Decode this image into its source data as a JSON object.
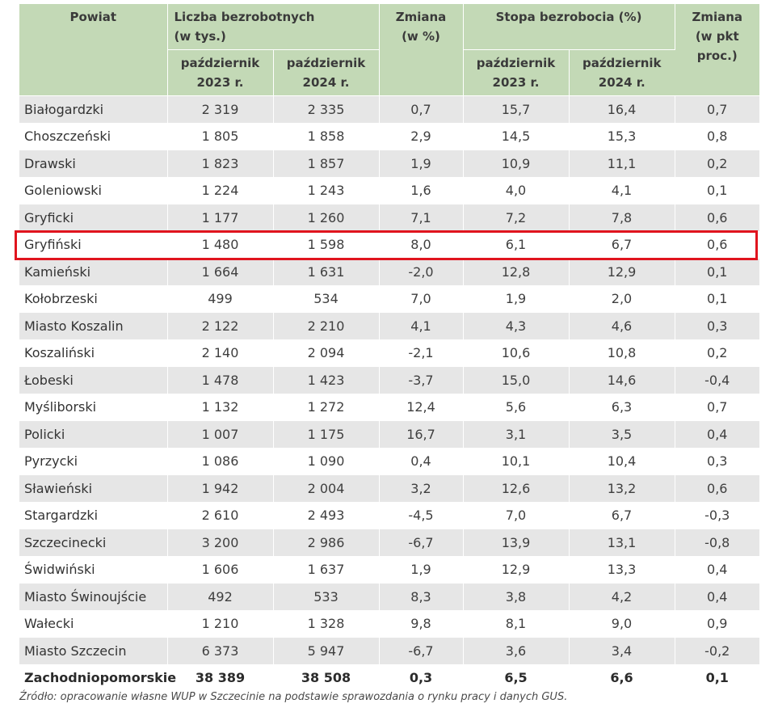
{
  "header": {
    "powiat": "Powiat",
    "liczba_line1": "Liczba bezrobotnych",
    "liczba_line2": "(w tys.)",
    "zmiana1_line1": "Zmiana",
    "zmiana1_line2": "(w %)",
    "stopa": "Stopa bezrobocia (%)",
    "zmiana2_line1": "Zmiana",
    "zmiana2_line2": "(w pkt",
    "zmiana2_line3": "proc.)",
    "sub_a_line1": "październik",
    "sub_a_line2": "2023 r.",
    "sub_b_line1": "październik",
    "sub_b_line2": "2024 r.",
    "sub_c_line1": "październik",
    "sub_c_line2": "2023 r.",
    "sub_d_line1": "październik",
    "sub_d_line2": "2024 r."
  },
  "highlight_color": "#e0141e",
  "header_bg": "#c3d9b6",
  "rows": [
    [
      "Białogardzki",
      "2 319",
      "2 335",
      "0,7",
      "15,7",
      "16,4",
      "0,7"
    ],
    [
      "Choszczeński",
      "1 805",
      "1 858",
      "2,9",
      "14,5",
      "15,3",
      "0,8"
    ],
    [
      "Drawski",
      "1 823",
      "1 857",
      "1,9",
      "10,9",
      "11,1",
      "0,2"
    ],
    [
      "Goleniowski",
      "1 224",
      "1 243",
      "1,6",
      "4,0",
      "4,1",
      "0,1"
    ],
    [
      "Gryficki",
      "1 177",
      "1 260",
      "7,1",
      "7,2",
      "7,8",
      "0,6"
    ],
    [
      "Gryfiński",
      "1 480",
      "1 598",
      "8,0",
      "6,1",
      "6,7",
      "0,6"
    ],
    [
      "Kamieński",
      "1 664",
      "1 631",
      "-2,0",
      "12,8",
      "12,9",
      "0,1"
    ],
    [
      "Kołobrzeski",
      "499",
      "534",
      "7,0",
      "1,9",
      "2,0",
      "0,1"
    ],
    [
      "Miasto Koszalin",
      "2 122",
      "2 210",
      "4,1",
      "4,3",
      "4,6",
      "0,3"
    ],
    [
      "Koszaliński",
      "2 140",
      "2 094",
      "-2,1",
      "10,6",
      "10,8",
      "0,2"
    ],
    [
      "Łobeski",
      "1 478",
      "1 423",
      "-3,7",
      "15,0",
      "14,6",
      "-0,4"
    ],
    [
      "Myśliborski",
      "1 132",
      "1 272",
      "12,4",
      "5,6",
      "6,3",
      "0,7"
    ],
    [
      "Policki",
      "1 007",
      "1 175",
      "16,7",
      "3,1",
      "3,5",
      "0,4"
    ],
    [
      "Pyrzycki",
      "1 086",
      "1 090",
      "0,4",
      "10,1",
      "10,4",
      "0,3"
    ],
    [
      "Sławieński",
      "1 942",
      "2 004",
      "3,2",
      "12,6",
      "13,2",
      "0,6"
    ],
    [
      "Stargardzki",
      "2 610",
      "2 493",
      "-4,5",
      "7,0",
      "6,7",
      "-0,3"
    ],
    [
      "Szczecinecki",
      "3 200",
      "2 986",
      "-6,7",
      "13,9",
      "13,1",
      "-0,8"
    ],
    [
      "Świdwiński",
      "1 606",
      "1 637",
      "1,9",
      "12,9",
      "13,3",
      "0,4"
    ],
    [
      "Miasto Świnoujście",
      "492",
      "533",
      "8,3",
      "3,8",
      "4,2",
      "0,4"
    ],
    [
      "Wałecki",
      "1 210",
      "1 328",
      "9,8",
      "8,1",
      "9,0",
      "0,9"
    ],
    [
      "Miasto Szczecin",
      "6 373",
      "5 947",
      "-6,7",
      "3,6",
      "3,4",
      "-0,2"
    ]
  ],
  "total": [
    "Zachodniopomorskie",
    "38 389",
    "38 508",
    "0,3",
    "6,5",
    "6,6",
    "0,1"
  ],
  "source": "Źródło: opracowanie własne WUP w Szczecinie na podstawie sprawozdania o rynku pracy i danych GUS."
}
